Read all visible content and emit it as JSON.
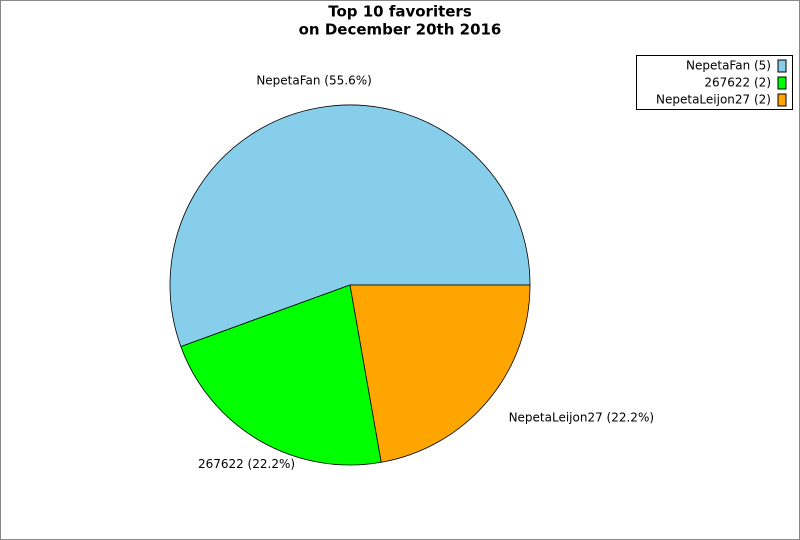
{
  "chart_data": {
    "type": "pie",
    "title": [
      "Top 10 favoriters",
      "on December 20th 2016"
    ],
    "values": [
      5,
      2,
      2
    ],
    "value_labels": [
      "NepetaFan (5)",
      "267622 (2)",
      "NepetaLeijon27 (2)"
    ],
    "percentages": [
      55.6,
      22.2,
      22.2
    ],
    "percentage_labels": [
      "NepetaFan (55.6%)",
      "267622 (22.2%)",
      "NepetaLeijon27 (22.2%)"
    ],
    "colors": [
      "#87ceeb",
      "#00ff00",
      "#ffa500"
    ],
    "legend": "top-right"
  }
}
